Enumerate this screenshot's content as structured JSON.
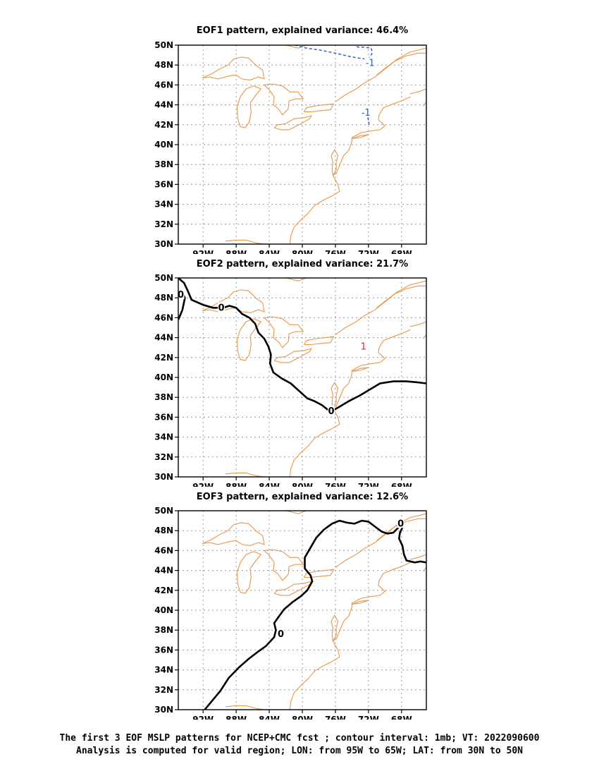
{
  "panels": [
    {
      "title": "EOF1 pattern, explained variance: 46.4%",
      "contour_labels": [
        {
          "text": "-1",
          "color": "#2453e0",
          "lon": -71.8,
          "lat": 48.2
        },
        {
          "text": "-1",
          "color": "#2453e0",
          "lon": -72.3,
          "lat": 43.2
        }
      ]
    },
    {
      "title": "EOF2 pattern, explained variance: 21.7%",
      "contour_labels": [
        {
          "text": "0",
          "color": "#000000",
          "lon": -94.7,
          "lat": 48.3
        },
        {
          "text": "0",
          "color": "#000000",
          "lon": -89.8,
          "lat": 47.0
        },
        {
          "text": "0",
          "color": "#000000",
          "lon": -76.5,
          "lat": 36.6
        },
        {
          "text": "1",
          "color": "#e8203a",
          "lon": -72.6,
          "lat": 43.1
        }
      ]
    },
    {
      "title": "EOF3 pattern, explained variance: 12.6%",
      "contour_labels": [
        {
          "text": "0",
          "color": "#000000",
          "lon": -68.1,
          "lat": 48.7
        },
        {
          "text": "0",
          "color": "#000000",
          "lon": -82.6,
          "lat": 37.6
        }
      ]
    }
  ],
  "axes": {
    "lat_labels": [
      "50N",
      "48N",
      "46N",
      "44N",
      "42N",
      "40N",
      "38N",
      "36N",
      "34N",
      "32N",
      "30N"
    ],
    "lon_labels": [
      "92W",
      "88W",
      "84W",
      "80W",
      "76W",
      "72W",
      "68W"
    ]
  },
  "caption": {
    "line1": "The first 3 EOF MSLP patterns for NCEP+CMC fcst ; contour interval: 1mb; VT: 2022090600",
    "line2": "Analysis is computed for valid region; LON: from 95W to 65W; LAT: from 30N to 50N"
  },
  "colors": {
    "coastline": "#e8964a",
    "zero_contour": "#000000",
    "negative_contour": "#2453e0",
    "positive_label": "#e8203a",
    "grid": "#9a9a9a"
  }
}
